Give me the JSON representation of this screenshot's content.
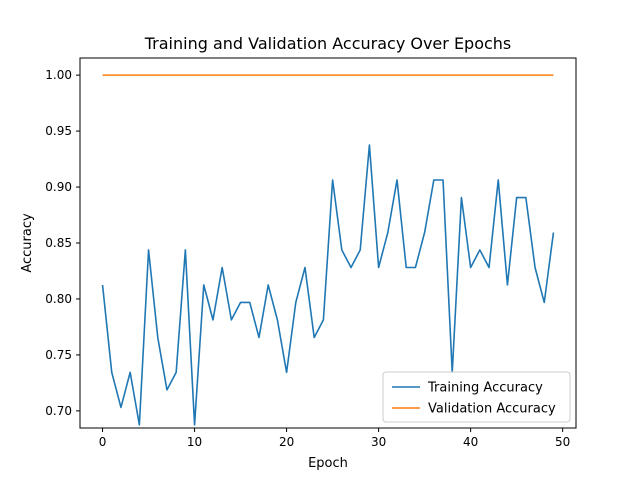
{
  "chart_data": {
    "type": "line",
    "title": "Training and Validation Accuracy Over Epochs",
    "xlabel": "Epoch",
    "ylabel": "Accuracy",
    "xlim": [
      -2.45,
      51.45
    ],
    "ylim": [
      0.6847,
      1.0153
    ],
    "xticks": [
      0,
      10,
      20,
      30,
      40,
      50
    ],
    "yticks": [
      0.7,
      0.75,
      0.8,
      0.85,
      0.9,
      0.95,
      1.0
    ],
    "xtick_labels": [
      "0",
      "10",
      "20",
      "30",
      "40",
      "50"
    ],
    "ytick_labels": [
      "0.70",
      "0.75",
      "0.80",
      "0.85",
      "0.90",
      "0.95",
      "1.00"
    ],
    "legend_position": "lower-right",
    "x": [
      0,
      1,
      2,
      3,
      4,
      5,
      6,
      7,
      8,
      9,
      10,
      11,
      12,
      13,
      14,
      15,
      16,
      17,
      18,
      19,
      20,
      21,
      22,
      23,
      24,
      25,
      26,
      27,
      28,
      29,
      30,
      31,
      32,
      33,
      34,
      35,
      36,
      37,
      38,
      39,
      40,
      41,
      42,
      43,
      44,
      45,
      46,
      47,
      48,
      49
    ],
    "series": [
      {
        "name": "Training Accuracy",
        "color": "#1f77b4",
        "values": [
          0.8125,
          0.7344,
          0.7031,
          0.7344,
          0.6875,
          0.8438,
          0.7656,
          0.7188,
          0.7344,
          0.8438,
          0.6875,
          0.8125,
          0.7813,
          0.8281,
          0.7813,
          0.7969,
          0.7969,
          0.7656,
          0.8125,
          0.7813,
          0.7344,
          0.7969,
          0.8281,
          0.7656,
          0.7813,
          0.9063,
          0.8438,
          0.8281,
          0.8438,
          0.9375,
          0.8281,
          0.8594,
          0.9063,
          0.8281,
          0.8281,
          0.8594,
          0.9063,
          0.9063,
          0.7344,
          0.8906,
          0.8281,
          0.8438,
          0.8281,
          0.9063,
          0.8125,
          0.8906,
          0.8906,
          0.8281,
          0.7969,
          0.8594
        ]
      },
      {
        "name": "Validation Accuracy",
        "color": "#ff7f0e",
        "values": [
          1.0,
          1.0,
          1.0,
          1.0,
          1.0,
          1.0,
          1.0,
          1.0,
          1.0,
          1.0,
          1.0,
          1.0,
          1.0,
          1.0,
          1.0,
          1.0,
          1.0,
          1.0,
          1.0,
          1.0,
          1.0,
          1.0,
          1.0,
          1.0,
          1.0,
          1.0,
          1.0,
          1.0,
          1.0,
          1.0,
          1.0,
          1.0,
          1.0,
          1.0,
          1.0,
          1.0,
          1.0,
          1.0,
          1.0,
          1.0,
          1.0,
          1.0,
          1.0,
          1.0,
          1.0,
          1.0,
          1.0,
          1.0,
          1.0,
          1.0
        ]
      }
    ]
  }
}
